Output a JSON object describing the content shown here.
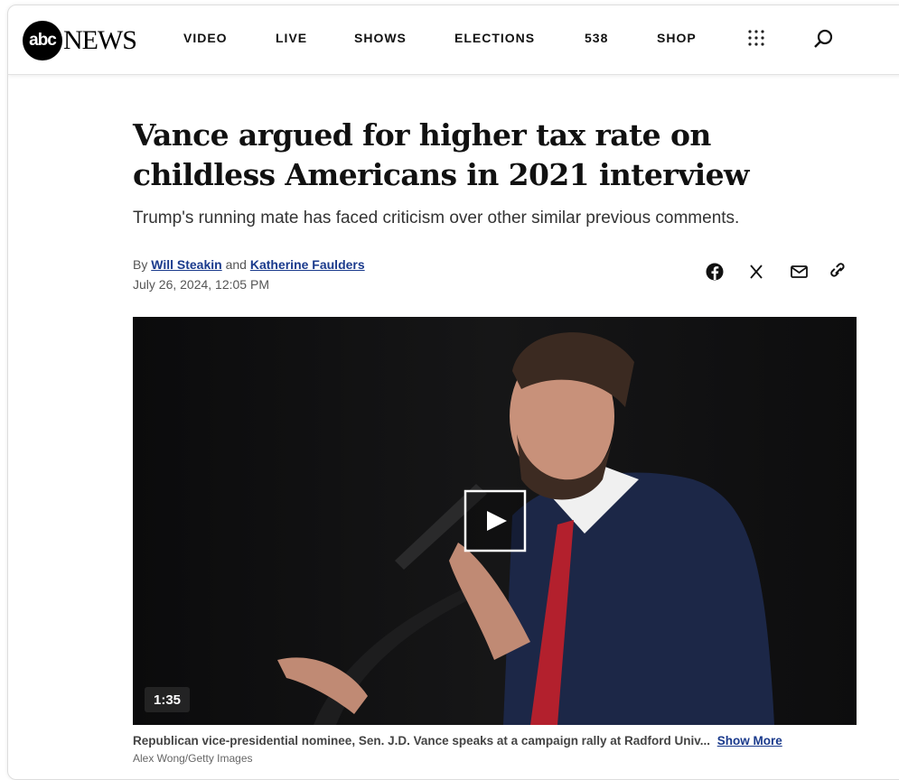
{
  "header": {
    "logo": {
      "badge": "abc",
      "wordmark": "NEWS"
    },
    "nav": [
      "VIDEO",
      "LIVE",
      "SHOWS",
      "ELECTIONS",
      "538",
      "SHOP"
    ]
  },
  "article": {
    "headline": "Vance argued for higher tax rate on childless Americans in 2021 interview",
    "subheadline": "Trump's running mate has faced criticism over other similar previous comments.",
    "byline": {
      "prefix": "By",
      "author_1": "Will Steakin",
      "joiner": "and",
      "author_2": "Katherine Faulders"
    },
    "date": "July 26, 2024, 12:05 PM",
    "video": {
      "duration": "1:35"
    },
    "caption": "Republican vice-presidential nominee, Sen. J.D. Vance speaks at a campaign rally at Radford Univ...",
    "show_more": "Show More",
    "credit": "Alex Wong/Getty Images"
  }
}
